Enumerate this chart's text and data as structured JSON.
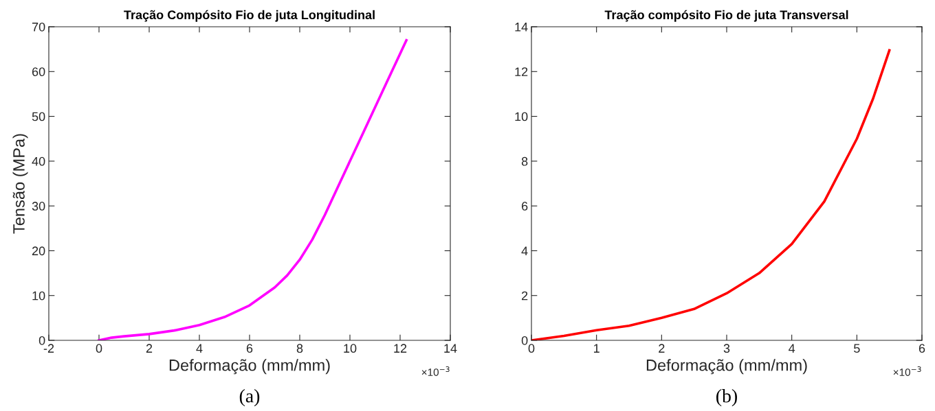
{
  "chart_data": [
    {
      "type": "line",
      "title": "Tração Compósito Fio de juta Longitudinal",
      "xlabel": "Deformação (mm/mm)",
      "ylabel": "Tensão (MPa)",
      "x": [
        0,
        0.5,
        1,
        2,
        3,
        4,
        5,
        6,
        7,
        7.5,
        8,
        8.5,
        9,
        9.5,
        10,
        10.5,
        11,
        11.5,
        12,
        12.25
      ],
      "series": [
        {
          "color": "#ff00ff",
          "values": [
            0,
            0.6,
            0.9,
            1.4,
            2.2,
            3.4,
            5.2,
            7.8,
            11.8,
            14.5,
            18,
            22.5,
            28,
            34,
            40,
            46,
            52,
            58,
            64,
            67
          ]
        }
      ],
      "xlim": [
        -2,
        14
      ],
      "xticks": [
        -2,
        0,
        2,
        4,
        6,
        8,
        10,
        12,
        14
      ],
      "ylim": [
        0,
        70
      ],
      "yticks": [
        0,
        10,
        20,
        30,
        40,
        50,
        60,
        70
      ],
      "grid": false,
      "legend": false,
      "annotations": [
        "×10$^{−3}$",
        "(a)"
      ]
    },
    {
      "type": "line",
      "title": "Tração compósito Fio de juta Transversal",
      "xlabel": "Deformação (mm/mm)",
      "x": [
        0,
        0.5,
        1,
        1.5,
        2,
        2.5,
        3,
        3.5,
        4,
        4.5,
        5,
        5.25,
        5.5
      ],
      "series": [
        {
          "color": "#ff0000",
          "values": [
            0,
            0.2,
            0.45,
            0.65,
            1.0,
            1.4,
            2.1,
            3.0,
            4.3,
            6.2,
            9.0,
            10.8,
            12.95
          ]
        }
      ],
      "xlim": [
        0,
        6
      ],
      "xticks": [
        0,
        1,
        2,
        3,
        4,
        5,
        6
      ],
      "ylim": [
        0,
        14
      ],
      "yticks": [
        0,
        2,
        4,
        6,
        8,
        10,
        12,
        14
      ],
      "grid": false,
      "legend": false,
      "annotations": [
        "×10$^{−3}$",
        "(b)"
      ]
    }
  ]
}
